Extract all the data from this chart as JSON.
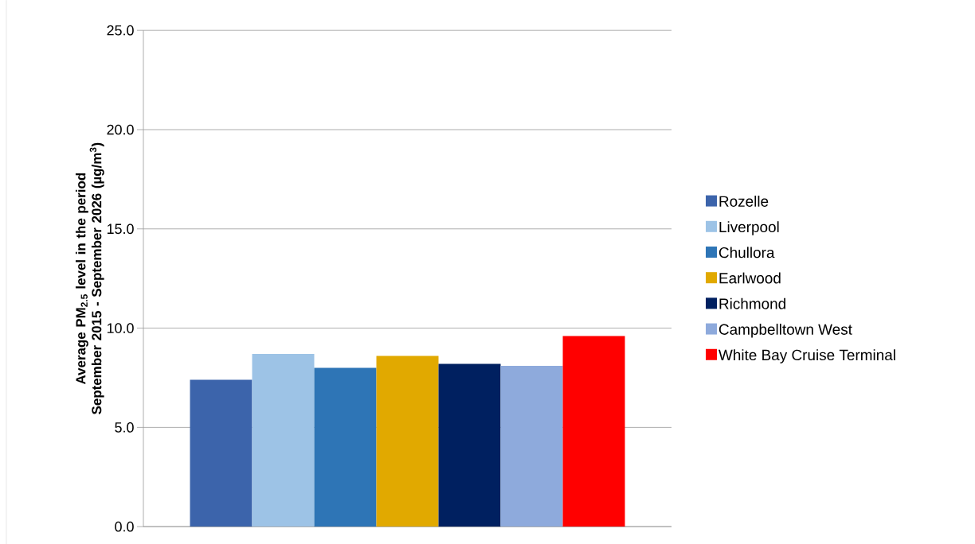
{
  "chart_data": {
    "type": "bar",
    "ylabel": "Average PM$_{2.5}$ level in the period September 2015 - September 2026 (µg/m$^{3}$)",
    "categories": [
      null
    ],
    "series": [
      {
        "name": "Rozelle",
        "color": "#3c64ab",
        "values": [
          7.4
        ]
      },
      {
        "name": "Liverpool",
        "color": "#9dc3e6",
        "values": [
          8.7
        ]
      },
      {
        "name": "Chullora",
        "color": "#2e75b6",
        "values": [
          8.0
        ]
      },
      {
        "name": "Earlwood",
        "color": "#e1a900",
        "values": [
          8.6
        ]
      },
      {
        "name": "Richmond",
        "color": "#002060",
        "values": [
          8.2
        ]
      },
      {
        "name": "Campbelltown West",
        "color": "#8eaadc",
        "values": [
          8.1
        ]
      },
      {
        "name": "White Bay Cruise Terminal",
        "color": "#ff0000",
        "values": [
          9.6
        ]
      }
    ],
    "ylim": [
      0,
      25
    ],
    "yticks": [
      {
        "value": 0,
        "label": "0.0"
      },
      {
        "value": 5,
        "label": "5.0"
      },
      {
        "value": 10,
        "label": "10.0"
      },
      {
        "value": 15,
        "label": "15.0"
      },
      {
        "value": 20,
        "label": "20.0"
      },
      {
        "value": 25,
        "label": "25.0"
      }
    ],
    "grid": "y",
    "legend": "right"
  }
}
